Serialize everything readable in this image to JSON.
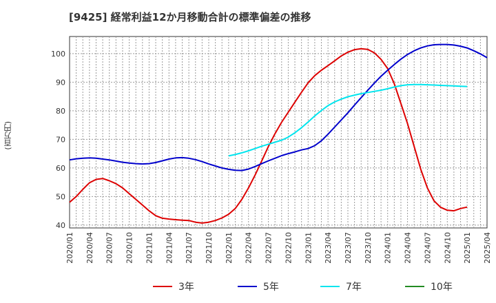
{
  "chart_data": {
    "type": "line",
    "title": "[9425]  経常利益12か月移動合計の標準偏差の推移",
    "ylabel": "(百万円)",
    "xlabel": "",
    "ylim": [
      39,
      106
    ],
    "yticks": [
      40,
      50,
      60,
      70,
      80,
      90,
      100
    ],
    "xticks": [
      "2020/01",
      "2020/04",
      "2020/07",
      "2020/10",
      "2021/01",
      "2021/04",
      "2021/07",
      "2021/10",
      "2022/01",
      "2022/04",
      "2022/07",
      "2022/10",
      "2023/01",
      "2023/04",
      "2023/07",
      "2023/10",
      "2024/01",
      "2024/04",
      "2024/07",
      "2024/10",
      "2025/01",
      "2025/04"
    ],
    "grid": true,
    "legend_position": "bottom",
    "series": [
      {
        "name": "3年",
        "color": "#dd0000",
        "points": [
          [
            "2020/01",
            48.0
          ],
          [
            "2020/02",
            50.0
          ],
          [
            "2020/03",
            52.5
          ],
          [
            "2020/04",
            54.8
          ],
          [
            "2020/05",
            56.0
          ],
          [
            "2020/06",
            56.3
          ],
          [
            "2020/07",
            55.5
          ],
          [
            "2020/08",
            54.5
          ],
          [
            "2020/09",
            53.0
          ],
          [
            "2020/10",
            51.0
          ],
          [
            "2020/11",
            49.0
          ],
          [
            "2020/12",
            47.0
          ],
          [
            "2021/01",
            45.0
          ],
          [
            "2021/02",
            43.3
          ],
          [
            "2021/03",
            42.4
          ],
          [
            "2021/04",
            42.1
          ],
          [
            "2021/05",
            41.9
          ],
          [
            "2021/06",
            41.7
          ],
          [
            "2021/07",
            41.6
          ],
          [
            "2021/08",
            41.0
          ],
          [
            "2021/09",
            40.7
          ],
          [
            "2021/10",
            41.0
          ],
          [
            "2021/11",
            41.6
          ],
          [
            "2021/12",
            42.5
          ],
          [
            "2022/01",
            43.8
          ],
          [
            "2022/02",
            45.8
          ],
          [
            "2022/03",
            49.0
          ],
          [
            "2022/04",
            53.0
          ],
          [
            "2022/05",
            57.5
          ],
          [
            "2022/06",
            62.5
          ],
          [
            "2022/07",
            67.5
          ],
          [
            "2022/08",
            72.0
          ],
          [
            "2022/09",
            76.0
          ],
          [
            "2022/10",
            79.5
          ],
          [
            "2022/11",
            83.0
          ],
          [
            "2022/12",
            86.5
          ],
          [
            "2023/01",
            89.8
          ],
          [
            "2023/02",
            92.3
          ],
          [
            "2023/03",
            94.2
          ],
          [
            "2023/04",
            95.8
          ],
          [
            "2023/05",
            97.5
          ],
          [
            "2023/06",
            99.2
          ],
          [
            "2023/07",
            100.5
          ],
          [
            "2023/08",
            101.4
          ],
          [
            "2023/09",
            101.7
          ],
          [
            "2023/10",
            101.5
          ],
          [
            "2023/11",
            100.3
          ],
          [
            "2023/12",
            98.0
          ],
          [
            "2024/01",
            94.8
          ],
          [
            "2024/02",
            89.5
          ],
          [
            "2024/03",
            82.5
          ],
          [
            "2024/04",
            75.5
          ],
          [
            "2024/05",
            67.5
          ],
          [
            "2024/06",
            59.5
          ],
          [
            "2024/07",
            53.0
          ],
          [
            "2024/08",
            48.5
          ],
          [
            "2024/09",
            46.2
          ],
          [
            "2024/10",
            45.2
          ],
          [
            "2024/11",
            45.0
          ],
          [
            "2024/12",
            45.8
          ],
          [
            "2025/01",
            46.3
          ]
        ]
      },
      {
        "name": "5年",
        "color": "#0000cc",
        "points": [
          [
            "2020/01",
            62.8
          ],
          [
            "2020/02",
            63.2
          ],
          [
            "2020/03",
            63.4
          ],
          [
            "2020/04",
            63.5
          ],
          [
            "2020/05",
            63.4
          ],
          [
            "2020/06",
            63.1
          ],
          [
            "2020/07",
            62.8
          ],
          [
            "2020/08",
            62.4
          ],
          [
            "2020/09",
            62.0
          ],
          [
            "2020/10",
            61.7
          ],
          [
            "2020/11",
            61.5
          ],
          [
            "2020/12",
            61.4
          ],
          [
            "2021/01",
            61.5
          ],
          [
            "2021/02",
            61.9
          ],
          [
            "2021/03",
            62.5
          ],
          [
            "2021/04",
            63.1
          ],
          [
            "2021/05",
            63.5
          ],
          [
            "2021/06",
            63.6
          ],
          [
            "2021/07",
            63.4
          ],
          [
            "2021/08",
            62.9
          ],
          [
            "2021/09",
            62.2
          ],
          [
            "2021/10",
            61.4
          ],
          [
            "2021/11",
            60.7
          ],
          [
            "2021/12",
            60.0
          ],
          [
            "2022/01",
            59.5
          ],
          [
            "2022/02",
            59.2
          ],
          [
            "2022/03",
            59.1
          ],
          [
            "2022/04",
            59.6
          ],
          [
            "2022/05",
            60.5
          ],
          [
            "2022/06",
            61.5
          ],
          [
            "2022/07",
            62.5
          ],
          [
            "2022/08",
            63.4
          ],
          [
            "2022/09",
            64.3
          ],
          [
            "2022/10",
            65.0
          ],
          [
            "2022/11",
            65.6
          ],
          [
            "2022/12",
            66.3
          ],
          [
            "2023/01",
            66.8
          ],
          [
            "2023/02",
            67.8
          ],
          [
            "2023/03",
            69.5
          ],
          [
            "2023/04",
            71.8
          ],
          [
            "2023/05",
            74.3
          ],
          [
            "2023/06",
            76.8
          ],
          [
            "2023/07",
            79.3
          ],
          [
            "2023/08",
            82.0
          ],
          [
            "2023/09",
            84.6
          ],
          [
            "2023/10",
            87.2
          ],
          [
            "2023/11",
            89.7
          ],
          [
            "2023/12",
            92.1
          ],
          [
            "2024/01",
            94.2
          ],
          [
            "2024/02",
            96.2
          ],
          [
            "2024/03",
            98.1
          ],
          [
            "2024/04",
            99.7
          ],
          [
            "2024/05",
            101.0
          ],
          [
            "2024/06",
            102.0
          ],
          [
            "2024/07",
            102.7
          ],
          [
            "2024/08",
            103.1
          ],
          [
            "2024/09",
            103.2
          ],
          [
            "2024/10",
            103.2
          ],
          [
            "2024/11",
            103.0
          ],
          [
            "2024/12",
            102.6
          ],
          [
            "2025/01",
            102.0
          ],
          [
            "2025/02",
            101.0
          ],
          [
            "2025/03",
            99.9
          ],
          [
            "2025/04",
            98.6
          ]
        ]
      },
      {
        "name": "7年",
        "color": "#00e5ee",
        "points": [
          [
            "2022/01",
            64.2
          ],
          [
            "2022/02",
            64.7
          ],
          [
            "2022/03",
            65.3
          ],
          [
            "2022/04",
            66.0
          ],
          [
            "2022/05",
            66.8
          ],
          [
            "2022/06",
            67.6
          ],
          [
            "2022/07",
            68.3
          ],
          [
            "2022/08",
            69.0
          ],
          [
            "2022/09",
            69.7
          ],
          [
            "2022/10",
            70.8
          ],
          [
            "2022/11",
            72.3
          ],
          [
            "2022/12",
            74.1
          ],
          [
            "2023/01",
            76.1
          ],
          [
            "2023/02",
            78.2
          ],
          [
            "2023/03",
            80.1
          ],
          [
            "2023/04",
            81.8
          ],
          [
            "2023/05",
            83.1
          ],
          [
            "2023/06",
            84.1
          ],
          [
            "2023/07",
            84.9
          ],
          [
            "2023/08",
            85.5
          ],
          [
            "2023/09",
            86.0
          ],
          [
            "2023/10",
            86.4
          ],
          [
            "2023/11",
            86.8
          ],
          [
            "2023/12",
            87.2
          ],
          [
            "2024/01",
            87.7
          ],
          [
            "2024/02",
            88.3
          ],
          [
            "2024/03",
            88.8
          ],
          [
            "2024/04",
            89.1
          ],
          [
            "2024/05",
            89.2
          ],
          [
            "2024/06",
            89.2
          ],
          [
            "2024/07",
            89.1
          ],
          [
            "2024/08",
            89.0
          ],
          [
            "2024/09",
            88.9
          ],
          [
            "2024/10",
            88.8
          ],
          [
            "2024/11",
            88.7
          ],
          [
            "2024/12",
            88.6
          ],
          [
            "2025/01",
            88.5
          ]
        ]
      },
      {
        "name": "10年",
        "color": "#228b22",
        "points": []
      }
    ]
  }
}
